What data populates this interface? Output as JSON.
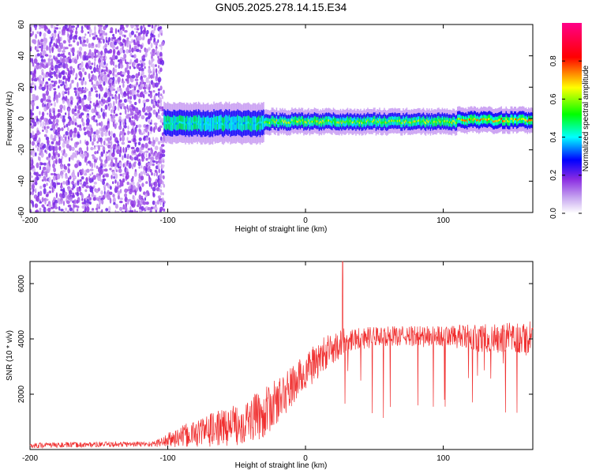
{
  "title": "GN05.2025.278.14.15.E34",
  "chart_data": [
    {
      "type": "heatmap",
      "xlabel": "Height of straight line (km)",
      "ylabel": "Frequency (Hz)",
      "xlim": [
        -200,
        165
      ],
      "ylim": [
        -60,
        60
      ],
      "x_ticks": [
        -200,
        -100,
        0,
        100
      ],
      "y_ticks": [
        -60,
        -40,
        -20,
        0,
        20,
        40,
        60
      ],
      "colorbar": {
        "label": "Normalized spectral amplitude",
        "range": [
          0,
          1
        ],
        "ticks": [
          "0.0",
          "0.2",
          "0.4",
          "0.6",
          "0.8"
        ],
        "colors": [
          "#ffffff",
          "#8a2be2",
          "#0000ff",
          "#00ffff",
          "#00ff00",
          "#ffff00",
          "#ff0000",
          "#ff00aa"
        ]
      },
      "regions": [
        {
          "x_range": [
            -200,
            -103
          ],
          "description": "broadband noise",
          "freq_range": [
            -60,
            60
          ],
          "amplitude": 0.15
        },
        {
          "x_range": [
            -103,
            -30
          ],
          "center_freq": -3,
          "half_width": 8,
          "peak_amplitude": 0.5
        },
        {
          "x_range": [
            -30,
            110
          ],
          "center_freq": -2,
          "half_width": 5,
          "peak_amplitude": 0.75
        },
        {
          "x_range": [
            110,
            165
          ],
          "center_freq": -1,
          "half_width": 5,
          "peak_amplitude": 0.85
        }
      ]
    },
    {
      "type": "line",
      "xlabel": "Height of straight line (km)",
      "ylabel": "SNR (10 * v/v)",
      "xlim": [
        -200,
        165
      ],
      "ylim": [
        0,
        6800
      ],
      "x_ticks": [
        -200,
        -100,
        0,
        100
      ],
      "y_ticks": [
        2000,
        4000,
        6000
      ],
      "series": [
        {
          "color": "#f03030",
          "envelope": [
            {
              "x": -200,
              "base": 150,
              "spread": 200
            },
            {
              "x": -110,
              "base": 200,
              "spread": 200
            },
            {
              "x": -95,
              "base": 400,
              "spread": 700
            },
            {
              "x": -70,
              "base": 700,
              "spread": 1200
            },
            {
              "x": -50,
              "base": 900,
              "spread": 1500
            },
            {
              "x": -30,
              "base": 1300,
              "spread": 1800
            },
            {
              "x": -15,
              "base": 2000,
              "spread": 1600
            },
            {
              "x": 0,
              "base": 2800,
              "spread": 1400
            },
            {
              "x": 15,
              "base": 3500,
              "spread": 1300
            },
            {
              "x": 30,
              "base": 4000,
              "spread": 900
            },
            {
              "x": 60,
              "base": 4100,
              "spread": 700
            },
            {
              "x": 100,
              "base": 4100,
              "spread": 800
            },
            {
              "x": 140,
              "base": 4000,
              "spread": 1100
            },
            {
              "x": 165,
              "base": 4000,
              "spread": 1300
            }
          ],
          "peak": {
            "x": 27,
            "y": 6800
          }
        }
      ]
    }
  ]
}
